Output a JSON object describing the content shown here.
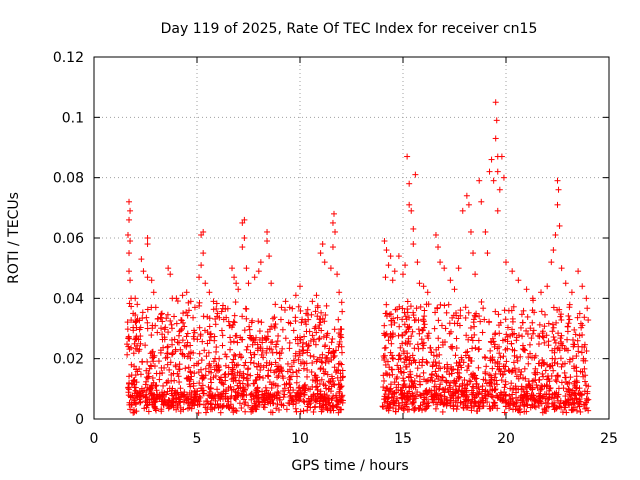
{
  "chart_data": {
    "type": "scatter",
    "title": "Day 119 of 2025, Rate Of TEC Index for receiver cn15",
    "xlabel": "GPS time / hours",
    "ylabel": "ROTI / TECUs",
    "xlim": [
      0,
      25
    ],
    "ylim": [
      0,
      0.12
    ],
    "grid": true,
    "marker": "+",
    "marker_color": "#ff0000",
    "x_ticks": [
      0,
      5,
      10,
      15,
      20,
      25
    ],
    "x_tick_labels": [
      "0",
      "5",
      "10",
      "15",
      "20",
      "25"
    ],
    "y_ticks": [
      0,
      0.02,
      0.04,
      0.06,
      0.08,
      0.1,
      0.12
    ],
    "y_tick_labels": [
      "0",
      "0.02",
      "0.04",
      "0.06",
      "0.08",
      "0.1",
      "0.12"
    ],
    "series": [
      {
        "name": "ROTI",
        "points": [
          [
            1.7,
            0.072
          ],
          [
            1.75,
            0.069
          ],
          [
            1.7,
            0.066
          ],
          [
            1.65,
            0.061
          ],
          [
            1.75,
            0.059
          ],
          [
            1.7,
            0.055
          ],
          [
            1.7,
            0.049
          ],
          [
            1.75,
            0.046
          ],
          [
            1.8,
            0.04
          ],
          [
            1.9,
            0.035
          ],
          [
            2.0,
            0.04
          ],
          [
            2.1,
            0.038
          ],
          [
            2.3,
            0.053
          ],
          [
            2.4,
            0.049
          ],
          [
            2.6,
            0.06
          ],
          [
            2.6,
            0.058
          ],
          [
            2.6,
            0.047
          ],
          [
            2.8,
            0.046
          ],
          [
            2.9,
            0.042
          ],
          [
            3.0,
            0.037
          ],
          [
            3.3,
            0.035
          ],
          [
            3.6,
            0.05
          ],
          [
            3.7,
            0.048
          ],
          [
            3.8,
            0.04
          ],
          [
            4.0,
            0.04
          ],
          [
            4.3,
            0.041
          ],
          [
            4.5,
            0.042
          ],
          [
            4.7,
            0.039
          ],
          [
            4.9,
            0.037
          ],
          [
            5.1,
            0.047
          ],
          [
            5.2,
            0.061
          ],
          [
            5.3,
            0.062
          ],
          [
            5.3,
            0.055
          ],
          [
            5.2,
            0.051
          ],
          [
            5.4,
            0.045
          ],
          [
            5.6,
            0.042
          ],
          [
            5.8,
            0.039
          ],
          [
            6.0,
            0.035
          ],
          [
            6.3,
            0.033
          ],
          [
            6.6,
            0.031
          ],
          [
            6.7,
            0.05
          ],
          [
            6.8,
            0.047
          ],
          [
            6.9,
            0.045
          ],
          [
            7.0,
            0.043
          ],
          [
            7.2,
            0.065
          ],
          [
            7.3,
            0.066
          ],
          [
            7.3,
            0.06
          ],
          [
            7.2,
            0.057
          ],
          [
            7.4,
            0.05
          ],
          [
            7.5,
            0.045
          ],
          [
            7.8,
            0.047
          ],
          [
            8.0,
            0.049
          ],
          [
            8.1,
            0.052
          ],
          [
            8.4,
            0.062
          ],
          [
            8.4,
            0.059
          ],
          [
            8.5,
            0.054
          ],
          [
            8.6,
            0.045
          ],
          [
            8.8,
            0.038
          ],
          [
            9.1,
            0.037
          ],
          [
            9.3,
            0.039
          ],
          [
            9.5,
            0.037
          ],
          [
            9.8,
            0.041
          ],
          [
            10.0,
            0.044
          ],
          [
            10.1,
            0.033
          ],
          [
            10.3,
            0.035
          ],
          [
            10.6,
            0.039
          ],
          [
            10.8,
            0.041
          ],
          [
            11.0,
            0.055
          ],
          [
            11.1,
            0.058
          ],
          [
            11.2,
            0.052
          ],
          [
            11.5,
            0.05
          ],
          [
            11.6,
            0.065
          ],
          [
            11.65,
            0.068
          ],
          [
            11.7,
            0.062
          ],
          [
            11.6,
            0.057
          ],
          [
            11.8,
            0.048
          ],
          [
            11.9,
            0.042
          ],
          [
            14.1,
            0.059
          ],
          [
            14.2,
            0.056
          ],
          [
            14.15,
            0.047
          ],
          [
            14.3,
            0.051
          ],
          [
            14.4,
            0.054
          ],
          [
            14.5,
            0.046
          ],
          [
            14.6,
            0.049
          ],
          [
            14.8,
            0.054
          ],
          [
            15.0,
            0.048
          ],
          [
            15.1,
            0.051
          ],
          [
            15.2,
            0.087
          ],
          [
            15.3,
            0.078
          ],
          [
            15.3,
            0.071
          ],
          [
            15.4,
            0.069
          ],
          [
            15.5,
            0.063
          ],
          [
            15.5,
            0.058
          ],
          [
            15.6,
            0.081
          ],
          [
            15.7,
            0.052
          ],
          [
            15.8,
            0.045
          ],
          [
            16.0,
            0.044
          ],
          [
            16.2,
            0.042
          ],
          [
            16.6,
            0.061
          ],
          [
            16.7,
            0.057
          ],
          [
            16.8,
            0.052
          ],
          [
            17.0,
            0.05
          ],
          [
            17.3,
            0.046
          ],
          [
            17.5,
            0.043
          ],
          [
            17.7,
            0.05
          ],
          [
            17.9,
            0.069
          ],
          [
            18.1,
            0.074
          ],
          [
            18.2,
            0.071
          ],
          [
            18.3,
            0.062
          ],
          [
            18.4,
            0.055
          ],
          [
            18.5,
            0.048
          ],
          [
            18.7,
            0.079
          ],
          [
            18.8,
            0.072
          ],
          [
            19.0,
            0.062
          ],
          [
            19.1,
            0.055
          ],
          [
            19.2,
            0.082
          ],
          [
            19.3,
            0.086
          ],
          [
            19.4,
            0.079
          ],
          [
            19.5,
            0.105
          ],
          [
            19.55,
            0.099
          ],
          [
            19.5,
            0.093
          ],
          [
            19.6,
            0.087
          ],
          [
            19.6,
            0.082
          ],
          [
            19.7,
            0.076
          ],
          [
            19.6,
            0.069
          ],
          [
            19.8,
            0.087
          ],
          [
            19.9,
            0.08
          ],
          [
            20.0,
            0.052
          ],
          [
            20.3,
            0.049
          ],
          [
            20.6,
            0.046
          ],
          [
            21.0,
            0.043
          ],
          [
            21.3,
            0.04
          ],
          [
            21.7,
            0.042
          ],
          [
            22.0,
            0.044
          ],
          [
            22.2,
            0.052
          ],
          [
            22.3,
            0.056
          ],
          [
            22.4,
            0.061
          ],
          [
            22.5,
            0.079
          ],
          [
            22.55,
            0.076
          ],
          [
            22.5,
            0.071
          ],
          [
            22.6,
            0.064
          ],
          [
            22.7,
            0.05
          ],
          [
            22.9,
            0.045
          ],
          [
            23.2,
            0.042
          ],
          [
            23.5,
            0.049
          ],
          [
            23.7,
            0.044
          ],
          [
            23.9,
            0.04
          ]
        ]
      }
    ]
  }
}
